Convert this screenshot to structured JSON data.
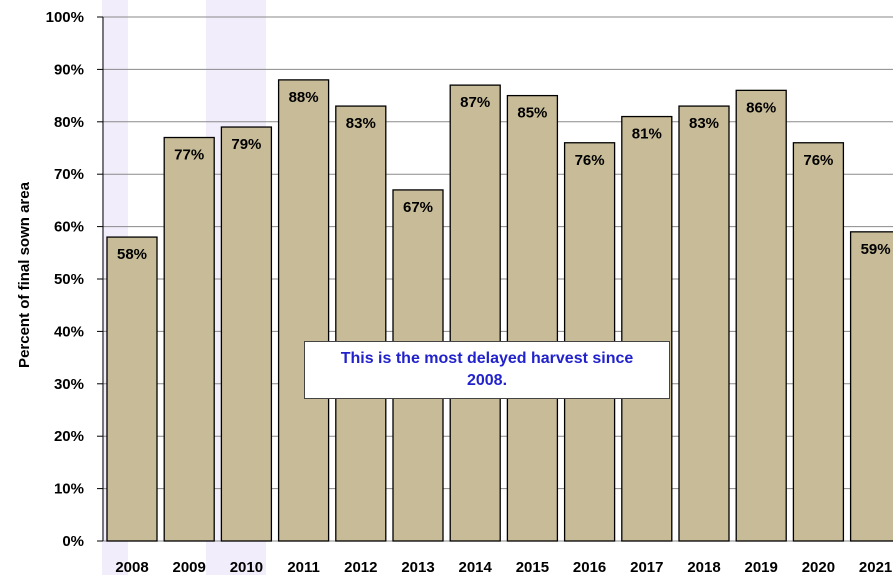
{
  "chart_data": {
    "type": "bar",
    "categories": [
      "2008",
      "2009",
      "2010",
      "2011",
      "2012",
      "2013",
      "2014",
      "2015",
      "2016",
      "2017",
      "2018",
      "2019",
      "2020",
      "2021"
    ],
    "values": [
      58,
      77,
      79,
      88,
      83,
      67,
      87,
      85,
      76,
      81,
      83,
      86,
      76,
      59
    ],
    "data_labels": [
      "58%",
      "77%",
      "79%",
      "88%",
      "83%",
      "67%",
      "87%",
      "85%",
      "76%",
      "81%",
      "83%",
      "86%",
      "76%",
      "59%"
    ],
    "ylabel": "Percent of final sown area",
    "yticks": [
      "0%",
      "10%",
      "20%",
      "30%",
      "40%",
      "50%",
      "60%",
      "70%",
      "80%",
      "90%",
      "100%"
    ],
    "ylim": [
      0,
      100
    ],
    "grid": true,
    "bar_color": "#c8bc98",
    "annotation": "This is the most delayed harvest since 2008."
  }
}
